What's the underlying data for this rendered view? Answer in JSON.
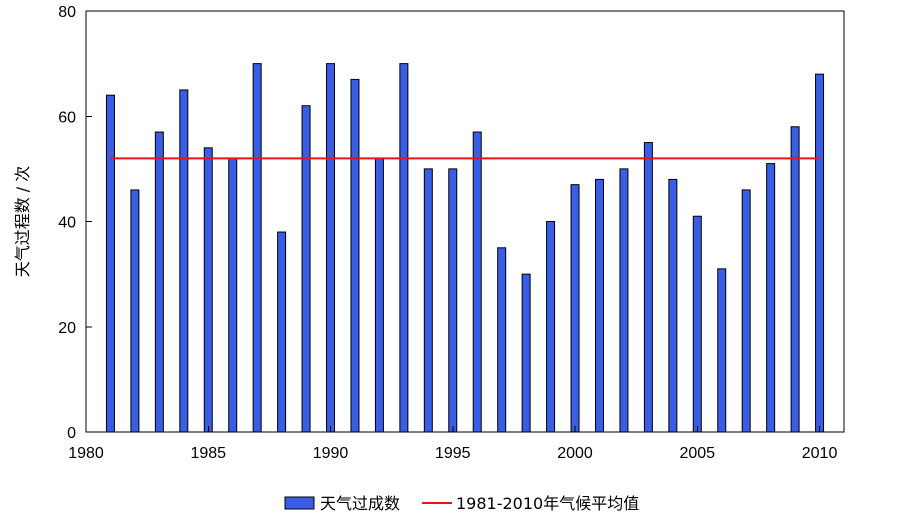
{
  "chart_data": {
    "type": "bar",
    "title": "",
    "xlabel": "",
    "ylabel": "天气过程数 / 次",
    "ylim": [
      0,
      80
    ],
    "yticks": [
      0,
      20,
      40,
      60,
      80
    ],
    "xlim": [
      1980,
      2011
    ],
    "xticks": [
      1980,
      1985,
      1990,
      1995,
      2000,
      2005,
      2010
    ],
    "grid": false,
    "legend_position": "bottom",
    "series": [
      {
        "name": "天气过成数",
        "kind": "bar",
        "color": "#3a5de6",
        "x": [
          1981,
          1982,
          1983,
          1984,
          1985,
          1986,
          1987,
          1988,
          1989,
          1990,
          1991,
          1992,
          1993,
          1994,
          1995,
          1996,
          1997,
          1998,
          1999,
          2000,
          2001,
          2002,
          2003,
          2004,
          2005,
          2006,
          2007,
          2008,
          2009,
          2010
        ],
        "values": [
          64,
          46,
          57,
          65,
          54,
          52,
          70,
          38,
          62,
          70,
          67,
          52,
          70,
          50,
          50,
          57,
          35,
          30,
          40,
          47,
          48,
          50,
          55,
          48,
          41,
          31,
          46,
          51,
          58,
          68
        ]
      },
      {
        "name": "1981-2010年气候平均值",
        "kind": "line",
        "color": "#e8141c",
        "x": [
          1981,
          2010
        ],
        "values": [
          52,
          52
        ]
      }
    ]
  }
}
